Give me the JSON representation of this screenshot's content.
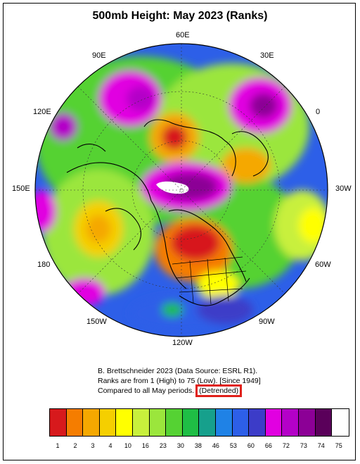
{
  "title": "500mb Height: May 2023 (Ranks)",
  "longitude_labels": [
    "60E",
    "90E",
    "30E",
    "120E",
    "0",
    "150E",
    "30W",
    "180",
    "60W",
    "150W",
    "90W",
    "120W"
  ],
  "credits": {
    "line1": "B. Brettschneider 2023 (Data Source: ESRL R1).",
    "line2": "Ranks are from 1 (High) to 75 (Low). [Since 1949]",
    "line3_prefix": "Compared to all May periods.",
    "line3_highlight": "(Detrended)"
  },
  "highlight_color": "#e0201a",
  "colorbar": {
    "colors": [
      "#d7191c",
      "#f57d00",
      "#f5a800",
      "#f5cf00",
      "#ffff00",
      "#c8f03c",
      "#9be63c",
      "#55d233",
      "#1fbe45",
      "#16a08c",
      "#1f82e6",
      "#2d5fe8",
      "#3c3cc8",
      "#e100e1",
      "#b400c8",
      "#8c0096",
      "#5a005a",
      "#ffffff"
    ],
    "tick_labels": [
      "1",
      "2",
      "3",
      "4",
      "10",
      "16",
      "23",
      "30",
      "38",
      "46",
      "53",
      "60",
      "66",
      "72",
      "73",
      "74",
      "75"
    ]
  }
}
